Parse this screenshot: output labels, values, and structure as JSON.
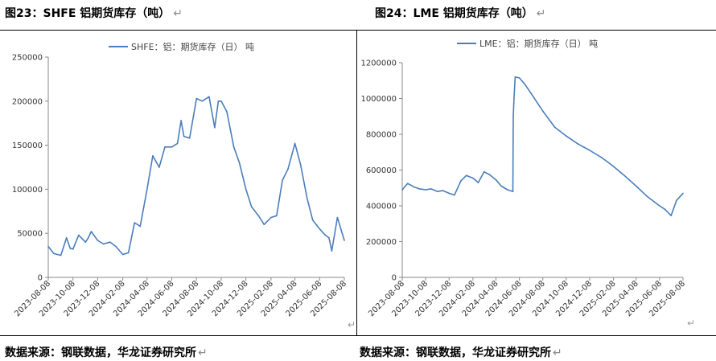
{
  "figures": [
    {
      "title": "图23：SHFE 铝期货库存（吨）"
    },
    {
      "title": "图24：LME 铝期货库存（吨）"
    }
  ],
  "source_text": "数据来源：钢联数据，华龙证券研究所",
  "return_mark": "↵",
  "chart_data": [
    {
      "type": "line",
      "series": [
        {
          "name": "SHFE：铝：期货库存（日） 吨",
          "color": "#4a7ebb",
          "x": [
            "2023-08-08",
            "2023-08-22",
            "2023-09-08",
            "2023-09-22",
            "2023-10-01",
            "2023-10-08",
            "2023-10-22",
            "2023-11-08",
            "2023-11-15",
            "2023-11-22",
            "2023-12-08",
            "2023-12-22",
            "2024-01-08",
            "2024-01-22",
            "2024-02-08",
            "2024-02-22",
            "2024-03-08",
            "2024-03-22",
            "2024-04-08",
            "2024-04-22",
            "2024-05-08",
            "2024-05-22",
            "2024-06-08",
            "2024-06-22",
            "2024-07-01",
            "2024-07-08",
            "2024-07-22",
            "2024-08-08",
            "2024-08-22",
            "2024-09-08",
            "2024-09-22",
            "2024-10-01",
            "2024-10-08",
            "2024-10-22",
            "2024-11-08",
            "2024-11-22",
            "2024-12-08",
            "2024-12-22",
            "2025-01-08",
            "2025-01-22",
            "2025-02-08",
            "2025-02-22",
            "2025-03-08",
            "2025-03-22",
            "2025-04-08",
            "2025-04-22",
            "2025-05-08",
            "2025-05-22",
            "2025-06-08",
            "2025-06-22",
            "2025-07-01",
            "2025-07-08",
            "2025-07-22",
            "2025-08-08"
          ],
          "y": [
            35000,
            27000,
            25000,
            45000,
            33000,
            32000,
            48000,
            40000,
            45000,
            52000,
            42000,
            38000,
            40000,
            35000,
            26000,
            28000,
            62000,
            58000,
            100000,
            138000,
            125000,
            148000,
            148000,
            152000,
            178000,
            160000,
            158000,
            203000,
            200000,
            205000,
            170000,
            200000,
            200000,
            188000,
            148000,
            130000,
            100000,
            80000,
            70000,
            60000,
            68000,
            70000,
            110000,
            123000,
            152000,
            128000,
            90000,
            65000,
            55000,
            48000,
            45000,
            30000,
            68000,
            42000
          ]
        }
      ],
      "ylim": [
        0,
        250000
      ],
      "yticks": [
        "0",
        "50000",
        "100000",
        "150000",
        "200000",
        "250000"
      ],
      "xticks": [
        "2023-08-08",
        "2023-10-08",
        "2023-12-08",
        "2024-02-08",
        "2024-04-08",
        "2024-06-08",
        "2024-08-08",
        "2024-10-08",
        "2024-12-08",
        "2025-02-08",
        "2025-04-08",
        "2025-06-08",
        "2025-08-08"
      ],
      "legend": "top-center",
      "grid": false
    },
    {
      "type": "line",
      "series": [
        {
          "name": "LME：铝：期货库存（日） 吨",
          "color": "#4a7ebb",
          "x": [
            "2023-08-08",
            "2023-08-22",
            "2023-09-08",
            "2023-09-22",
            "2023-10-08",
            "2023-10-22",
            "2023-11-08",
            "2023-11-22",
            "2023-12-08",
            "2023-12-22",
            "2024-01-08",
            "2024-01-22",
            "2024-02-08",
            "2024-02-22",
            "2024-03-08",
            "2024-03-22",
            "2024-04-08",
            "2024-04-22",
            "2024-05-08",
            "2024-05-22",
            "2024-05-23",
            "2024-05-25",
            "2024-05-28",
            "2024-06-08",
            "2024-06-22",
            "2024-07-08",
            "2024-08-08",
            "2024-09-08",
            "2024-10-08",
            "2024-11-08",
            "2024-12-08",
            "2025-01-08",
            "2025-02-08",
            "2025-03-08",
            "2025-04-08",
            "2025-05-08",
            "2025-06-08",
            "2025-06-22",
            "2025-07-08",
            "2025-07-22",
            "2025-08-08"
          ],
          "y": [
            490000,
            525000,
            505000,
            495000,
            490000,
            495000,
            480000,
            485000,
            470000,
            460000,
            540000,
            570000,
            555000,
            530000,
            590000,
            575000,
            545000,
            510000,
            490000,
            480000,
            900000,
            1000000,
            1120000,
            1115000,
            1080000,
            1030000,
            930000,
            840000,
            790000,
            745000,
            710000,
            670000,
            620000,
            570000,
            510000,
            450000,
            400000,
            380000,
            345000,
            430000,
            470000
          ]
        }
      ],
      "ylim": [
        0,
        1200000
      ],
      "yticks": [
        "0",
        "200000",
        "400000",
        "600000",
        "800000",
        "1000000",
        "1200000"
      ],
      "xticks": [
        "2023-08-08",
        "2023-10-08",
        "2023-12-08",
        "2024-02-08",
        "2024-04-08",
        "2024-06-08",
        "2024-08-08",
        "2024-10-08",
        "2024-12-08",
        "2025-02-08",
        "2025-04-08",
        "2025-06-08",
        "2025-08-08"
      ],
      "legend": "top-center",
      "grid": false
    }
  ]
}
